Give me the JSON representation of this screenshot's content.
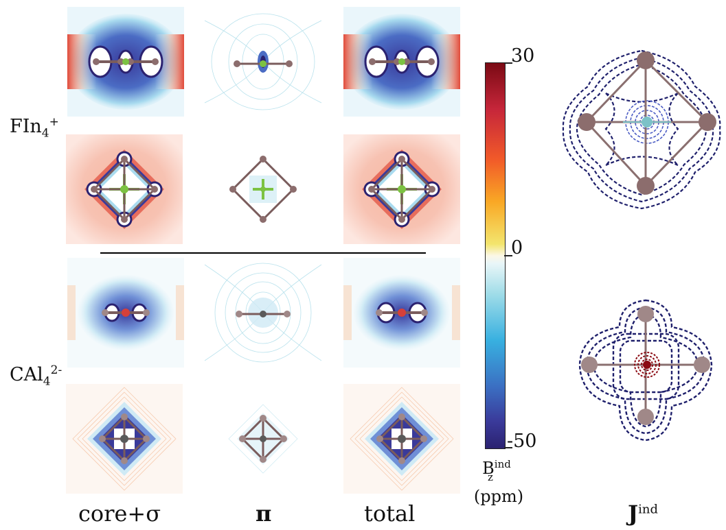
{
  "molecules": [
    {
      "base": "FIn",
      "sub": "4",
      "sup": "+"
    },
    {
      "base": "CAl",
      "sub": "4",
      "sup": "2-"
    }
  ],
  "columns": {
    "core_sigma": "core+σ",
    "pi": "π",
    "total": "total",
    "current": "J",
    "current_sup": "ind"
  },
  "colorbar": {
    "max_label": "30",
    "mid_label": "0",
    "min_label": "-50",
    "quantity": "B",
    "quantity_sup": "ind",
    "quantity_sub": "z",
    "unit": "(ppm)",
    "colors": [
      "#7a0a14",
      "#f15a29",
      "#f3e56e",
      "#fbf7e6",
      "#38b0e0",
      "#3a3a9a",
      "#2b2270"
    ]
  },
  "atom_colors": {
    "In": "#8c6d6d",
    "Al": "#a08888",
    "F": "#7cc242",
    "C": "#5a5a5a"
  }
}
